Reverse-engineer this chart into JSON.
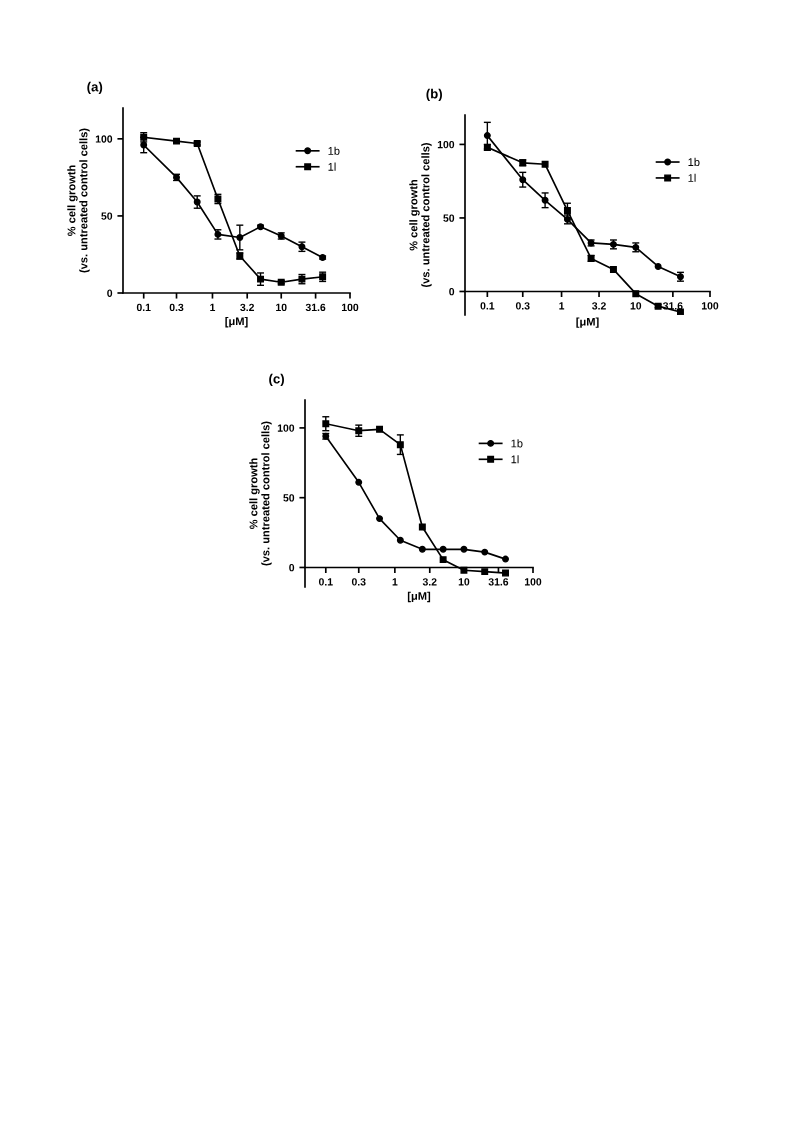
{
  "chart_data": [
    {
      "type": "line",
      "title": "(a)",
      "xlabel": "[μM]",
      "ylabel": "% cell growth\n(vs. untreated control cells)",
      "log": "x",
      "x": [
        0.1,
        0.3,
        0.6,
        1.2,
        2.5,
        5,
        10,
        20,
        40
      ],
      "xlim": [
        0.05,
        100
      ],
      "xticks": [
        0.1,
        0.3,
        1,
        3.2,
        10,
        31.6,
        100
      ],
      "ylim": [
        0,
        120
      ],
      "yticks": [
        0,
        50,
        100
      ],
      "grid": false,
      "legend": "right",
      "series": [
        {
          "name": "1b",
          "color": "#000000",
          "marker": "circle",
          "values": [
            96,
            75,
            59,
            38,
            36,
            43,
            37,
            30,
            23
          ],
          "errors": [
            5,
            2,
            4,
            3,
            8,
            1,
            2,
            3,
            1
          ]
        },
        {
          "name": "1l",
          "color": "#000000",
          "marker": "square",
          "values": [
            101,
            98.5,
            97,
            61,
            24,
            9,
            7,
            9,
            10.5
          ],
          "errors": [
            3,
            1,
            1,
            3,
            2,
            4,
            1,
            3,
            3
          ]
        }
      ]
    },
    {
      "type": "line",
      "title": "(b)",
      "xlabel": "[μM]",
      "ylabel": "% cell growth\n(vs. untreated control cells)",
      "log": "x",
      "x": [
        0.1,
        0.3,
        0.6,
        1.2,
        2.5,
        5,
        10,
        20,
        40
      ],
      "xlim": [
        0.05,
        100
      ],
      "xticks": [
        0.1,
        0.3,
        1,
        3.2,
        10,
        31.6,
        100
      ],
      "ylim": [
        -16,
        120
      ],
      "yticks": [
        0,
        50,
        100
      ],
      "grid": false,
      "legend": "right",
      "series": [
        {
          "name": "1b",
          "color": "#000000",
          "marker": "circle",
          "values": [
            106,
            76,
            62,
            49,
            33,
            32,
            30,
            17,
            10
          ],
          "errors": [
            9,
            5,
            5,
            3,
            2,
            3,
            3,
            null,
            3
          ]
        },
        {
          "name": "1l",
          "color": "#000000",
          "marker": "square",
          "values": [
            98,
            87.5,
            86.5,
            55,
            22.5,
            15,
            -1.5,
            -10,
            -14
          ],
          "errors": [
            2,
            2,
            null,
            5,
            2,
            null,
            null,
            1,
            null
          ]
        }
      ]
    },
    {
      "type": "line",
      "title": "(c)",
      "xlabel": "[μM]",
      "ylabel": "% cell growth\n(vs. untreated control cells)",
      "log": "x",
      "x": [
        0.1,
        0.3,
        0.6,
        1.2,
        2.5,
        5,
        10,
        20,
        40
      ],
      "xlim": [
        0.05,
        100
      ],
      "xticks": [
        0.1,
        0.3,
        1,
        3.2,
        10,
        31.6,
        100
      ],
      "ylim": [
        -14,
        120
      ],
      "yticks": [
        0,
        50,
        100
      ],
      "grid": false,
      "legend": "right",
      "series": [
        {
          "name": "1b",
          "color": "#000000",
          "marker": "circle",
          "values": [
            94,
            61,
            35,
            19.5,
            13,
            13,
            13,
            11,
            6
          ],
          "errors": [
            2,
            null,
            null,
            null,
            null,
            null,
            null,
            null,
            null
          ]
        },
        {
          "name": "1l",
          "color": "#000000",
          "marker": "square",
          "values": [
            103,
            98,
            99,
            88,
            29,
            5.6,
            -2,
            -3,
            -4
          ],
          "errors": [
            5,
            4,
            null,
            7,
            null,
            null,
            null,
            null,
            null
          ]
        }
      ]
    }
  ]
}
